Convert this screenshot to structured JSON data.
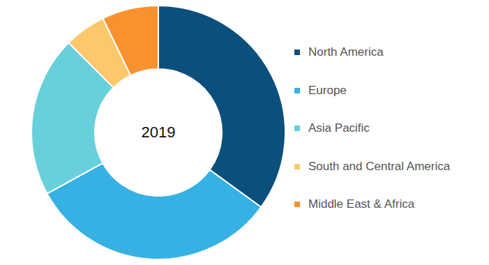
{
  "chart_data": {
    "type": "pie",
    "title": "2019",
    "donut": true,
    "categories": [
      "North America",
      "Europe",
      "Asia Pacific",
      "South and Central America",
      "Middle East & Africa"
    ],
    "values": [
      35,
      32,
      20.5,
      5.3,
      7.2
    ],
    "colors": [
      "#0b4f7d",
      "#36b1e3",
      "#67d0da",
      "#fdc86b",
      "#f7922e"
    ],
    "legend": "right"
  }
}
